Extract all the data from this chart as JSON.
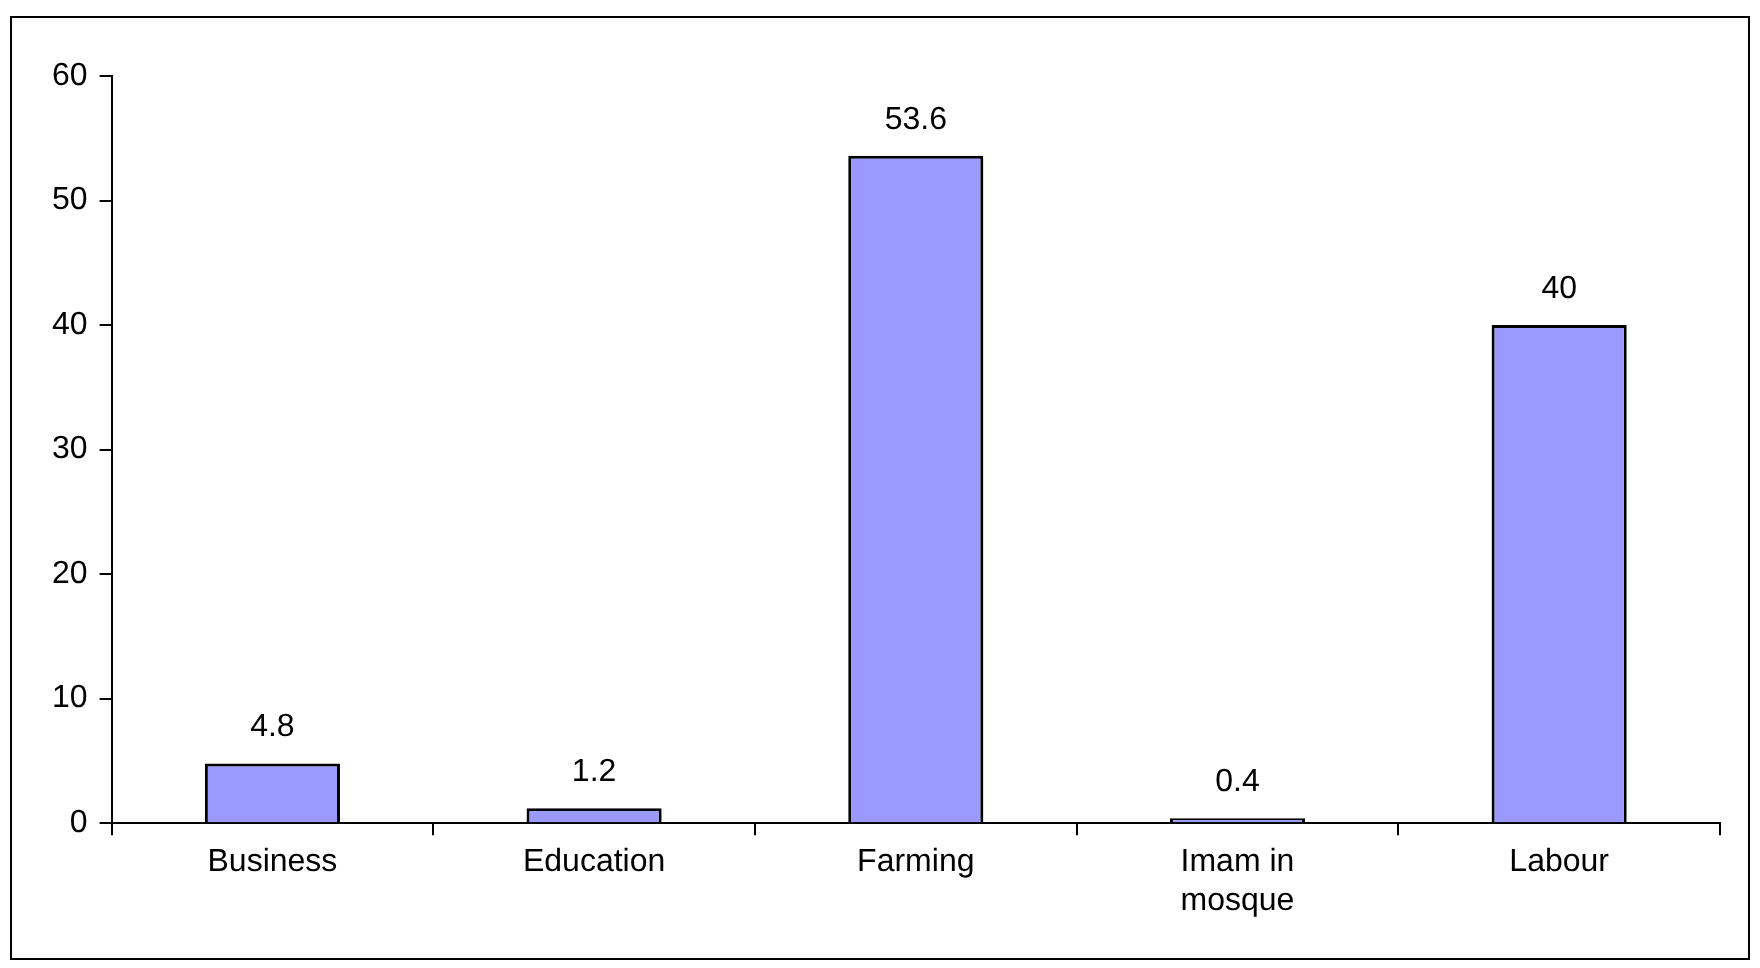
{
  "chart_data": {
    "type": "bar",
    "categories": [
      "Business",
      "Education",
      "Farming",
      "Imam in mosque",
      "Labour"
    ],
    "values": [
      4.8,
      1.2,
      53.6,
      0.4,
      40
    ],
    "color": "#9999ff",
    "ylim": [
      0,
      60
    ],
    "yticks": [
      0,
      10,
      20,
      30,
      40,
      50,
      60
    ],
    "grid": false,
    "legend": false,
    "data_labels": true
  }
}
